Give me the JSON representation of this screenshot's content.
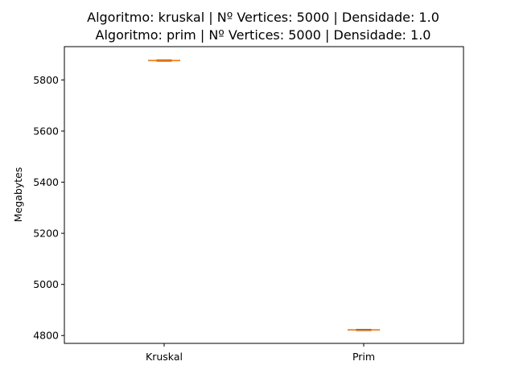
{
  "chart_data": {
    "type": "box",
    "title_lines": [
      "Algoritmo: kruskal | Nº Vertices: 5000 | Densidade: 1.0",
      "Algoritmo: prim | Nº Vertices: 5000 | Densidade: 1.0"
    ],
    "xlabel": "",
    "ylabel": "Megabytes",
    "categories": [
      "Kruskal",
      "Prim"
    ],
    "series": [
      {
        "category": "Kruskal",
        "min": 5874,
        "q1": 5875,
        "median": 5876,
        "q3": 5877,
        "max": 5878
      },
      {
        "category": "Prim",
        "min": 4820,
        "q1": 4821,
        "median": 4822,
        "q3": 4823,
        "max": 4824
      }
    ],
    "yticks": [
      4800,
      5000,
      5200,
      5400,
      5600,
      5800
    ],
    "ylim": [
      4769.3,
      5930.3
    ],
    "grid": false,
    "colors": {
      "box": "#000000",
      "median": "#ff7f0e",
      "axis": "#000000"
    }
  }
}
